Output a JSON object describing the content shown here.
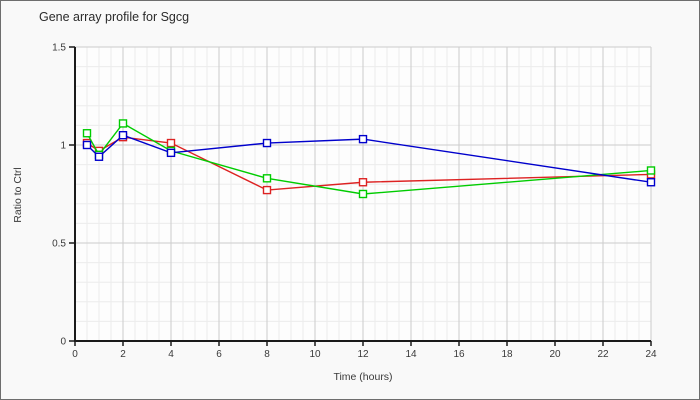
{
  "window": {
    "background": "#f9f9f9",
    "border_color": "#6e6e6e"
  },
  "chart_data": {
    "type": "line",
    "title": "Gene array profile for Sgcg",
    "xlabel": "Time (hours)",
    "ylabel": "Ratio to Ctrl",
    "x": [
      0.5,
      1,
      2,
      4,
      8,
      12,
      24
    ],
    "series": [
      {
        "name": "red-series",
        "color": "#dd2222",
        "values": [
          1.01,
          0.97,
          1.04,
          1.01,
          0.77,
          0.81,
          0.85
        ]
      },
      {
        "name": "green-series",
        "color": "#00cc00",
        "values": [
          1.06,
          0.95,
          1.11,
          0.97,
          0.83,
          0.75,
          0.87
        ]
      },
      {
        "name": "blue-series",
        "color": "#0000cc",
        "values": [
          1.0,
          0.94,
          1.05,
          0.96,
          1.01,
          1.03,
          0.81
        ]
      }
    ],
    "xlim": [
      0,
      24
    ],
    "ylim": [
      0,
      1.5
    ],
    "x_ticks": [
      0,
      2,
      4,
      6,
      8,
      10,
      12,
      14,
      16,
      18,
      20,
      22,
      24
    ],
    "x_tick_labels": [
      "0",
      "2",
      "4",
      "6",
      "8",
      "10",
      "12",
      "14",
      "16",
      "18",
      "20",
      "22",
      "24"
    ],
    "y_ticks": [
      0,
      0.5,
      1,
      1.5
    ],
    "y_tick_labels": [
      "0",
      "0.5",
      "1",
      "1.5"
    ],
    "minor_x_step": 0.5,
    "minor_y_step": 0.1,
    "grid": "on",
    "legend": "none",
    "marker": "open-square",
    "colors": {
      "plot_bg": "#fdfdfd",
      "grid_minor": "#ececec",
      "grid_major": "#cccccc",
      "axis": "#1a1a1a",
      "tick_text": "#3a3a3a"
    }
  }
}
